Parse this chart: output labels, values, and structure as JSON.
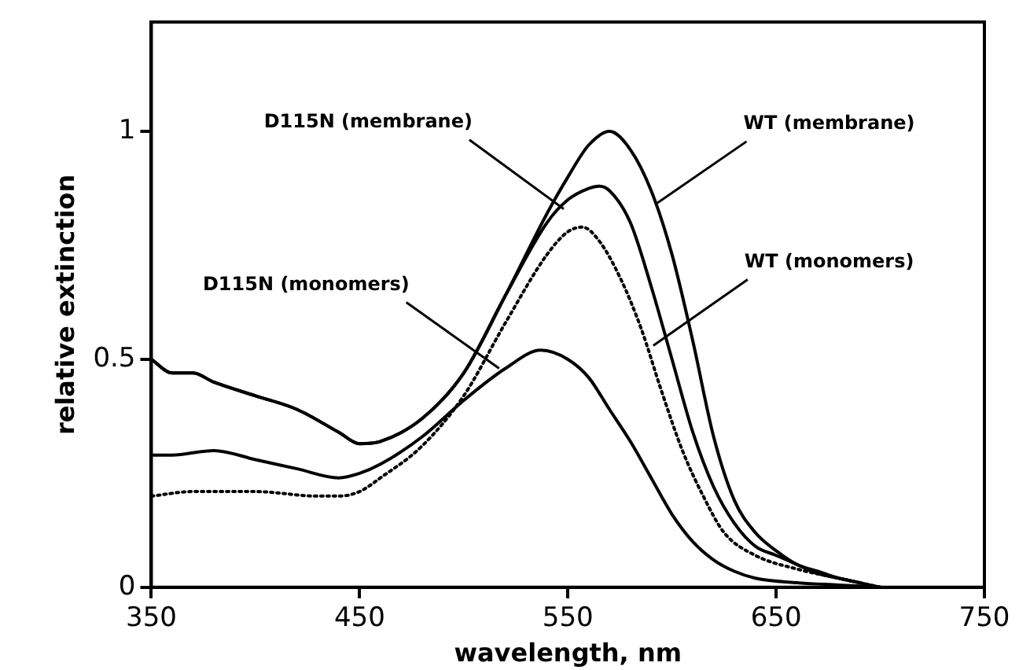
{
  "chart_data": {
    "type": "line",
    "xlabel": "wavelength, nm",
    "ylabel": "relative extinction",
    "xlim": [
      350,
      750
    ],
    "xticks": [
      350,
      450,
      550,
      650,
      750
    ],
    "ylim": [
      0,
      1.24
    ],
    "yticks": [
      0,
      0.5,
      1
    ],
    "grid": false,
    "legend": false,
    "marker": "none",
    "series": [
      {
        "color": "#000000",
        "line_style": "solid",
        "x": [
          350,
          360,
          370,
          380,
          400,
          420,
          440,
          450,
          460,
          480,
          500,
          520,
          540,
          550,
          560,
          570,
          580,
          590,
          600,
          610,
          620,
          630,
          640,
          650,
          660,
          670,
          680,
          690,
          700
        ],
        "values": [
          0.5,
          0.47,
          0.47,
          0.45,
          0.42,
          0.39,
          0.34,
          0.315,
          0.32,
          0.37,
          0.47,
          0.64,
          0.82,
          0.9,
          0.97,
          1.0,
          0.96,
          0.87,
          0.73,
          0.54,
          0.33,
          0.19,
          0.12,
          0.08,
          0.05,
          0.035,
          0.02,
          0.01,
          0
        ]
      },
      {
        "color": "#000000",
        "line_style": "solid",
        "x": [
          350,
          360,
          370,
          380,
          400,
          420,
          440,
          450,
          460,
          480,
          500,
          520,
          540,
          550,
          560,
          565,
          570,
          580,
          590,
          600,
          610,
          620,
          630,
          640,
          650,
          660,
          670,
          680,
          690
        ],
        "values": [
          0.5,
          0.47,
          0.47,
          0.45,
          0.42,
          0.39,
          0.34,
          0.315,
          0.32,
          0.37,
          0.47,
          0.64,
          0.8,
          0.85,
          0.875,
          0.88,
          0.87,
          0.8,
          0.66,
          0.5,
          0.34,
          0.22,
          0.14,
          0.09,
          0.07,
          0.05,
          0.03,
          0.02,
          0.01
        ]
      },
      {
        "color": "#000000",
        "line_style": "dotted",
        "x": [
          350,
          370,
          400,
          430,
          440,
          450,
          460,
          480,
          500,
          520,
          540,
          550,
          557,
          565,
          575,
          585,
          595,
          605,
          615,
          625,
          640,
          660,
          680,
          700
        ],
        "values": [
          0.2,
          0.21,
          0.21,
          0.2,
          0.2,
          0.21,
          0.24,
          0.31,
          0.42,
          0.58,
          0.73,
          0.78,
          0.79,
          0.76,
          0.68,
          0.57,
          0.43,
          0.3,
          0.2,
          0.12,
          0.07,
          0.04,
          0.02,
          0
        ]
      },
      {
        "color": "#000000",
        "line_style": "solid",
        "x": [
          350,
          360,
          380,
          400,
          420,
          440,
          450,
          460,
          480,
          500,
          520,
          537,
          550,
          560,
          570,
          580,
          590,
          600,
          610,
          620,
          630,
          640,
          660,
          680,
          700
        ],
        "values": [
          0.29,
          0.29,
          0.3,
          0.28,
          0.26,
          0.24,
          0.25,
          0.27,
          0.33,
          0.41,
          0.48,
          0.52,
          0.5,
          0.46,
          0.39,
          0.32,
          0.24,
          0.16,
          0.1,
          0.06,
          0.035,
          0.02,
          0.01,
          0.005,
          0
        ]
      }
    ],
    "annotations": [
      {
        "text": "D115N (membrane)",
        "x": 548,
        "y": 0.83
      },
      {
        "text": "WT (membrane)",
        "x": 592,
        "y": 0.84
      },
      {
        "text": "WT (monomers)",
        "x": 591,
        "y": 0.53
      },
      {
        "text": "D115N (monomers)",
        "x": 517,
        "y": 0.48
      }
    ]
  }
}
